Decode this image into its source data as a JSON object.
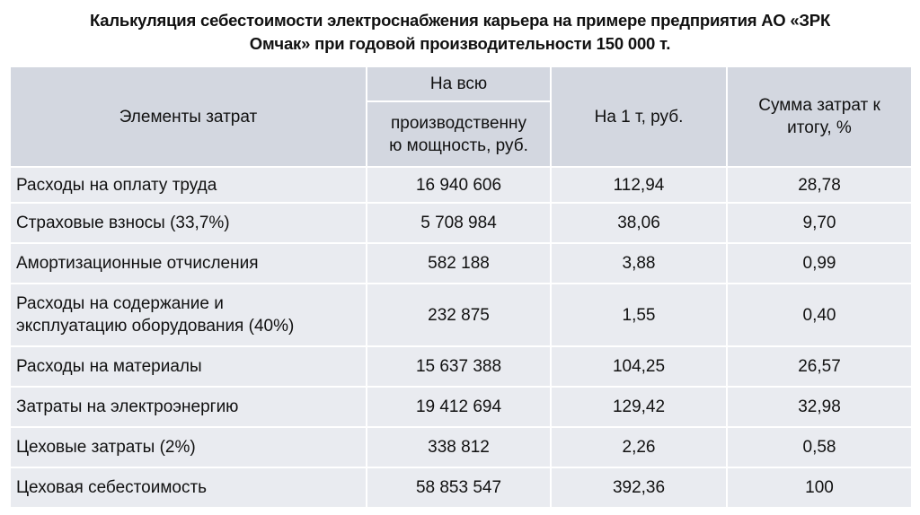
{
  "title": {
    "lines": [
      "Калькуляция себестоимости электроснабжения карьера на примере предприятия  АО «ЗРК",
      "Омчак» при годовой производительности 150 000 т."
    ]
  },
  "table": {
    "header": {
      "elements": "Элементы затрат",
      "total_top": "На всю",
      "total_bottom": [
        "производственну",
        "ю мощность, руб."
      ],
      "per_ton": "На 1 т, руб.",
      "share": [
        "Сумма затрат к",
        "итогу, %"
      ]
    },
    "rows": [
      [
        [
          "Расходы на оплату труда"
        ],
        "16 940 606",
        "112,94",
        "28,78"
      ],
      [
        [
          "Страховые взносы (33,7%)"
        ],
        "5 708 984",
        "38,06",
        "9,70"
      ],
      [
        [
          "Амортизационные отчисления"
        ],
        "582 188",
        "3,88",
        "0,99"
      ],
      [
        [
          "Расходы на содержание и",
          "эксплуатацию  оборудования (40%)"
        ],
        "232 875",
        "1,55",
        "0,40"
      ],
      [
        [
          "Расходы на материалы"
        ],
        "15 637 388",
        "104,25",
        "26,57"
      ],
      [
        [
          "Затраты на электроэнергию"
        ],
        "19 412 694",
        "129,42",
        "32,98"
      ],
      [
        [
          "Цеховые затраты (2%)"
        ],
        "338 812",
        "2,26",
        "0,58"
      ],
      [
        [
          "Цеховая себестоимость"
        ],
        "58 853 547",
        "392,36",
        "100"
      ]
    ]
  }
}
